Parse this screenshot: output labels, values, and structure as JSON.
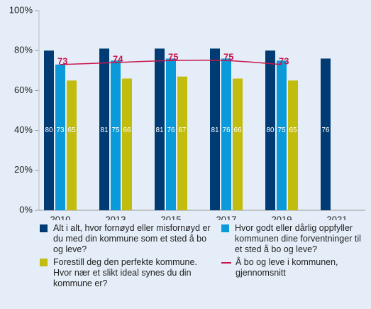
{
  "chart_data": {
    "type": "bar",
    "categories": [
      "2010",
      "2013",
      "2015",
      "2017",
      "2019",
      "2021"
    ],
    "series": [
      {
        "name": "Alt i alt, hvor fornøyd eller misfornøyd er du med din kommune som et sted å bo og leve?",
        "color": "#003b73",
        "values": [
          80,
          81,
          81,
          81,
          80,
          76
        ]
      },
      {
        "name": "Hvor godt eller dårlig oppfyller kommunen dine forventninger til et sted å bo og leve?",
        "color": "#0b9ad9",
        "values": [
          73,
          75,
          76,
          76,
          75,
          null
        ]
      },
      {
        "name": "Forestill deg den perfekte kommune. Hvor nær et slikt ideal synes du din kommune er?",
        "color": "#c2bc0f",
        "values": [
          65,
          66,
          67,
          66,
          65,
          null
        ]
      },
      {
        "name": "Å bo og leve i kommunen, gjennomsnitt",
        "color": "#c8174b",
        "type": "line",
        "values": [
          73,
          74,
          75,
          75,
          73,
          null
        ]
      }
    ],
    "ylim": [
      0,
      100
    ],
    "yticks": [
      {
        "value": 0,
        "label": "0%"
      },
      {
        "value": 20,
        "label": "20%"
      },
      {
        "value": 40,
        "label": "40%"
      },
      {
        "value": 60,
        "label": "60%"
      },
      {
        "value": 80,
        "label": "80%"
      },
      {
        "value": 100,
        "label": "100%"
      }
    ],
    "grid": false
  }
}
